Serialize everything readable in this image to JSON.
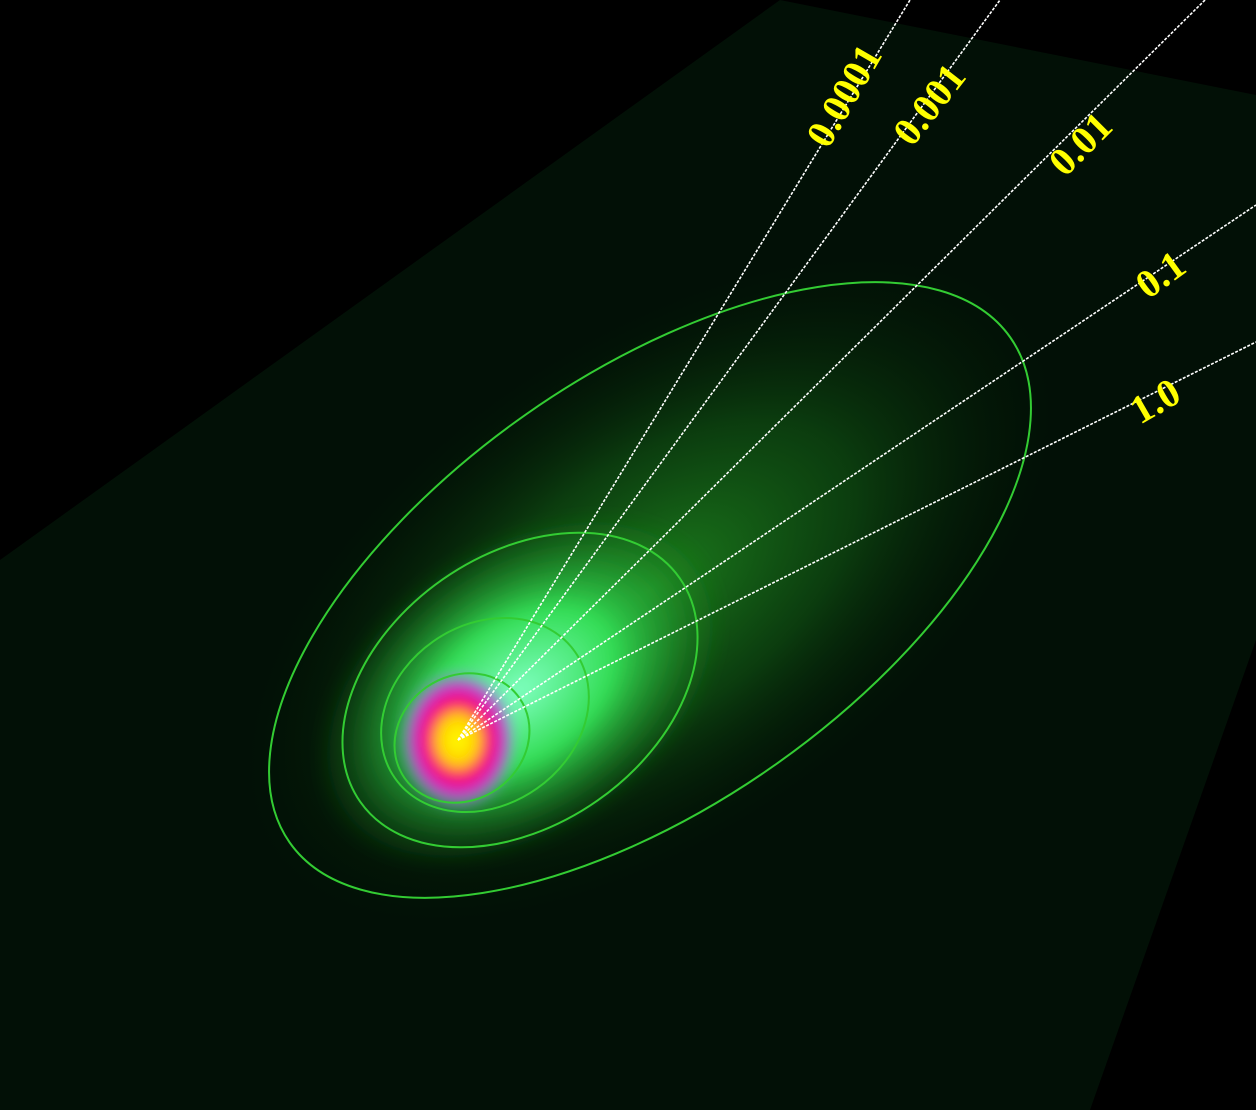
{
  "syndynes": [
    {
      "label": "0.0001"
    },
    {
      "label": "0.001"
    },
    {
      "label": "0.01"
    },
    {
      "label": "0.1"
    },
    {
      "label": "1.0"
    }
  ]
}
